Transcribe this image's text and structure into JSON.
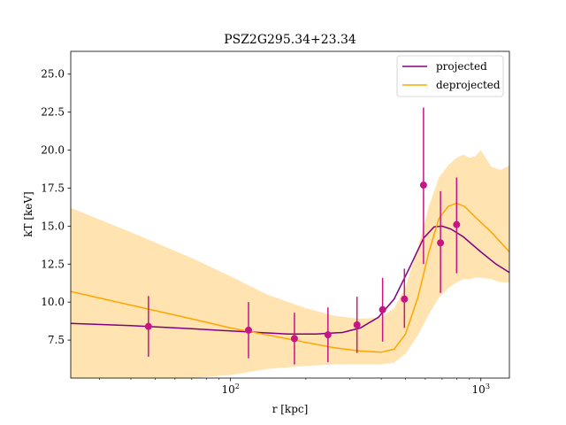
{
  "chart_data": {
    "type": "line",
    "title": "PSZ2G295.34+23.34",
    "xlabel": "r [kpc]",
    "ylabel": "kT [keV]",
    "xscale": "log",
    "xlim": [
      23,
      1300
    ],
    "ylim": [
      5.0,
      26.5
    ],
    "x_tick_labels": [
      "10^2",
      "10^3"
    ],
    "x_ticks": [
      100,
      1000
    ],
    "y_ticks": [
      7.5,
      10.0,
      12.5,
      15.0,
      17.5,
      20.0,
      22.5,
      25.0
    ],
    "y_tick_labels": [
      "7.5",
      "10.0",
      "12.5",
      "15.0",
      "17.5",
      "20.0",
      "22.5",
      "25.0"
    ],
    "legend": {
      "placement": "top-right",
      "entries": [
        "projected",
        "deprojected"
      ]
    },
    "colors": {
      "projected": "#800080",
      "deprojected": "#ffa500",
      "band": "#ffa500",
      "points": "#c71585"
    },
    "series": [
      {
        "name": "projected",
        "x": [
          23,
          40,
          70,
          100,
          130,
          170,
          220,
          280,
          330,
          390,
          450,
          520,
          590,
          650,
          700,
          760,
          850,
          1000,
          1150,
          1300
        ],
        "y": [
          8.6,
          8.45,
          8.25,
          8.1,
          8.0,
          7.9,
          7.9,
          8.0,
          8.3,
          9.0,
          10.2,
          12.3,
          14.2,
          14.95,
          15.0,
          14.8,
          14.3,
          13.3,
          12.5,
          11.95
        ]
      },
      {
        "name": "deprojected",
        "x": [
          23,
          40,
          70,
          100,
          150,
          200,
          260,
          330,
          400,
          450,
          500,
          560,
          620,
          680,
          740,
          800,
          860,
          950,
          1100,
          1300
        ],
        "y": [
          10.7,
          9.8,
          8.9,
          8.3,
          7.75,
          7.35,
          7.0,
          6.78,
          6.7,
          6.9,
          7.9,
          10.3,
          13.3,
          15.5,
          16.3,
          16.5,
          16.3,
          15.6,
          14.6,
          13.3
        ]
      }
    ],
    "band": {
      "x": [
        23,
        40,
        70,
        100,
        140,
        200,
        260,
        330,
        400,
        450,
        500,
        560,
        620,
        680,
        740,
        800,
        850,
        900,
        950,
        1000,
        1100,
        1200,
        1300
      ],
      "lower": [
        5.0,
        5.0,
        5.0,
        5.2,
        5.6,
        5.8,
        5.9,
        5.9,
        5.9,
        6.0,
        6.6,
        7.8,
        9.2,
        10.3,
        10.9,
        11.3,
        11.5,
        11.5,
        11.6,
        11.6,
        11.5,
        11.3,
        11.3
      ],
      "upper": [
        16.2,
        14.6,
        12.9,
        11.7,
        10.5,
        9.6,
        9.1,
        8.9,
        9.0,
        9.6,
        11.0,
        13.6,
        16.3,
        18.2,
        19.0,
        19.5,
        19.7,
        19.5,
        19.6,
        20.0,
        18.9,
        18.7,
        19.0
      ]
    },
    "points": {
      "x": [
        47,
        118,
        180,
        245,
        320,
        405,
        495,
        590,
        690,
        800
      ],
      "y": [
        8.4,
        8.15,
        7.6,
        7.85,
        8.5,
        9.5,
        10.2,
        17.7,
        13.9,
        15.1
      ],
      "yerr_low": [
        2.0,
        1.85,
        1.7,
        1.8,
        1.85,
        2.1,
        1.9,
        5.2,
        3.3,
        3.2
      ],
      "yerr_high": [
        2.0,
        1.85,
        1.7,
        1.8,
        1.85,
        2.1,
        2.0,
        5.1,
        3.4,
        3.1
      ]
    }
  }
}
